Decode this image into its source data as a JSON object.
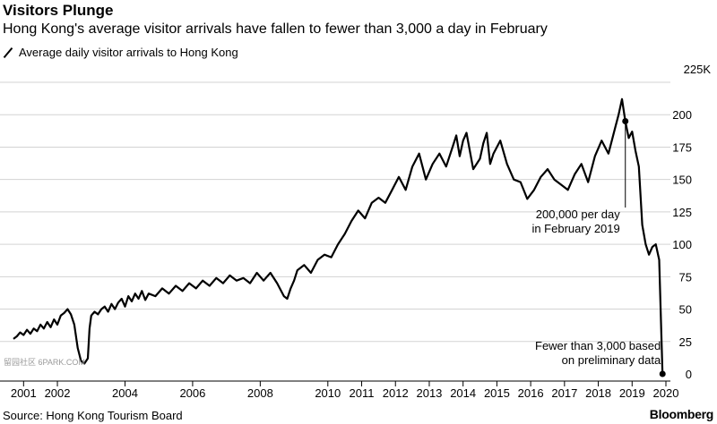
{
  "header": {
    "title": "Visitors Plunge",
    "subtitle": "Hong Kong's average visitor arrivals have fallen to fewer than 3,000 a day in February"
  },
  "legend": {
    "label": "Average daily visitor arrivals to Hong Kong"
  },
  "footer": {
    "source": "Source: Hong Kong Tourism Board",
    "brand": "Bloomberg",
    "watermark": "留园社区 6PARK.COM"
  },
  "colors": {
    "line": "#000000",
    "grid": "#d3d3d3",
    "background": "#ffffff"
  },
  "chart_data": {
    "type": "line",
    "title": "Visitors Plunge",
    "subtitle": "Hong Kong's average visitor arrivals have fallen to fewer than 3,000 a day in February",
    "xlabel": "",
    "ylabel": "",
    "xlim": [
      2001.0,
      2020.3
    ],
    "ylim": [
      0,
      225
    ],
    "y_unit_label": "225K",
    "x_tick_labels": [
      "2001",
      "2002",
      "2004",
      "2006",
      "2008",
      "2010",
      "2011",
      "2012",
      "2013",
      "2014",
      "2015",
      "2016",
      "2017",
      "2018",
      "2019",
      "2020"
    ],
    "x_tick_values": [
      2001.3,
      2002.3,
      2004.3,
      2006.3,
      2008.3,
      2010.3,
      2011.3,
      2012.3,
      2013.3,
      2014.3,
      2015.3,
      2016.3,
      2017.3,
      2018.3,
      2019.3,
      2020.3
    ],
    "y_ticks": [
      0,
      25,
      50,
      75,
      100,
      125,
      150,
      175,
      200
    ],
    "y_tick_labels": [
      "0",
      "25",
      "50",
      "75",
      "100",
      "125",
      "150",
      "175",
      "200"
    ],
    "grid": "horizontal",
    "legend_position": "top-left",
    "series": [
      {
        "name": "Average daily visitor arrivals to Hong Kong",
        "x": [
          2001.0,
          2001.1,
          2001.2,
          2001.3,
          2001.4,
          2001.5,
          2001.6,
          2001.7,
          2001.8,
          2001.9,
          2002.0,
          2002.1,
          2002.2,
          2002.3,
          2002.4,
          2002.5,
          2002.6,
          2002.7,
          2002.8,
          2002.9,
          2003.0,
          2003.1,
          2003.2,
          2003.25,
          2003.3,
          2003.4,
          2003.5,
          2003.6,
          2003.7,
          2003.8,
          2003.9,
          2004.0,
          2004.1,
          2004.2,
          2004.3,
          2004.4,
          2004.5,
          2004.6,
          2004.7,
          2004.8,
          2004.9,
          2005.0,
          2005.2,
          2005.4,
          2005.6,
          2005.8,
          2006.0,
          2006.2,
          2006.4,
          2006.6,
          2006.8,
          2007.0,
          2007.2,
          2007.4,
          2007.6,
          2007.8,
          2008.0,
          2008.2,
          2008.4,
          2008.6,
          2008.8,
          2009.0,
          2009.1,
          2009.2,
          2009.3,
          2009.4,
          2009.6,
          2009.8,
          2010.0,
          2010.2,
          2010.4,
          2010.6,
          2010.8,
          2011.0,
          2011.2,
          2011.4,
          2011.6,
          2011.8,
          2012.0,
          2012.2,
          2012.4,
          2012.6,
          2012.8,
          2013.0,
          2013.2,
          2013.4,
          2013.6,
          2013.8,
          2014.0,
          2014.1,
          2014.2,
          2014.3,
          2014.4,
          2014.6,
          2014.8,
          2014.9,
          2015.0,
          2015.1,
          2015.2,
          2015.4,
          2015.6,
          2015.8,
          2016.0,
          2016.2,
          2016.4,
          2016.6,
          2016.8,
          2017.0,
          2017.2,
          2017.4,
          2017.6,
          2017.8,
          2018.0,
          2018.2,
          2018.4,
          2018.6,
          2018.8,
          2018.9,
          2019.0,
          2019.1,
          2019.2,
          2019.3,
          2019.4,
          2019.5,
          2019.6,
          2019.7,
          2019.8,
          2019.9,
          2020.0,
          2020.1,
          2020.2
        ],
        "values": [
          27,
          29,
          32,
          30,
          34,
          31,
          35,
          33,
          38,
          35,
          40,
          36,
          42,
          38,
          45,
          47,
          50,
          46,
          38,
          20,
          10,
          8,
          12,
          35,
          45,
          48,
          46,
          50,
          52,
          48,
          54,
          50,
          55,
          58,
          52,
          60,
          56,
          62,
          58,
          64,
          57,
          62,
          60,
          66,
          62,
          68,
          64,
          70,
          66,
          72,
          68,
          74,
          70,
          76,
          72,
          74,
          70,
          78,
          72,
          78,
          70,
          60,
          58,
          66,
          72,
          80,
          84,
          78,
          88,
          92,
          90,
          100,
          108,
          118,
          126,
          120,
          132,
          136,
          132,
          142,
          152,
          142,
          160,
          170,
          150,
          162,
          170,
          160,
          176,
          184,
          168,
          180,
          186,
          158,
          166,
          178,
          186,
          162,
          170,
          180,
          162,
          150,
          148,
          135,
          142,
          152,
          158,
          150,
          146,
          142,
          154,
          162,
          148,
          168,
          180,
          170,
          190,
          200,
          212,
          195,
          182,
          187,
          172,
          160,
          115,
          100,
          92,
          98,
          100,
          88,
          0
        ]
      }
    ],
    "annotations": [
      {
        "text_lines": [
          "200,000 per day",
          "in February 2019"
        ],
        "x": 2019.1,
        "y": 195
      },
      {
        "text_lines": [
          "Fewer than 3,000 based",
          "on preliminary data"
        ],
        "x": 2020.2,
        "y": 0
      }
    ]
  }
}
